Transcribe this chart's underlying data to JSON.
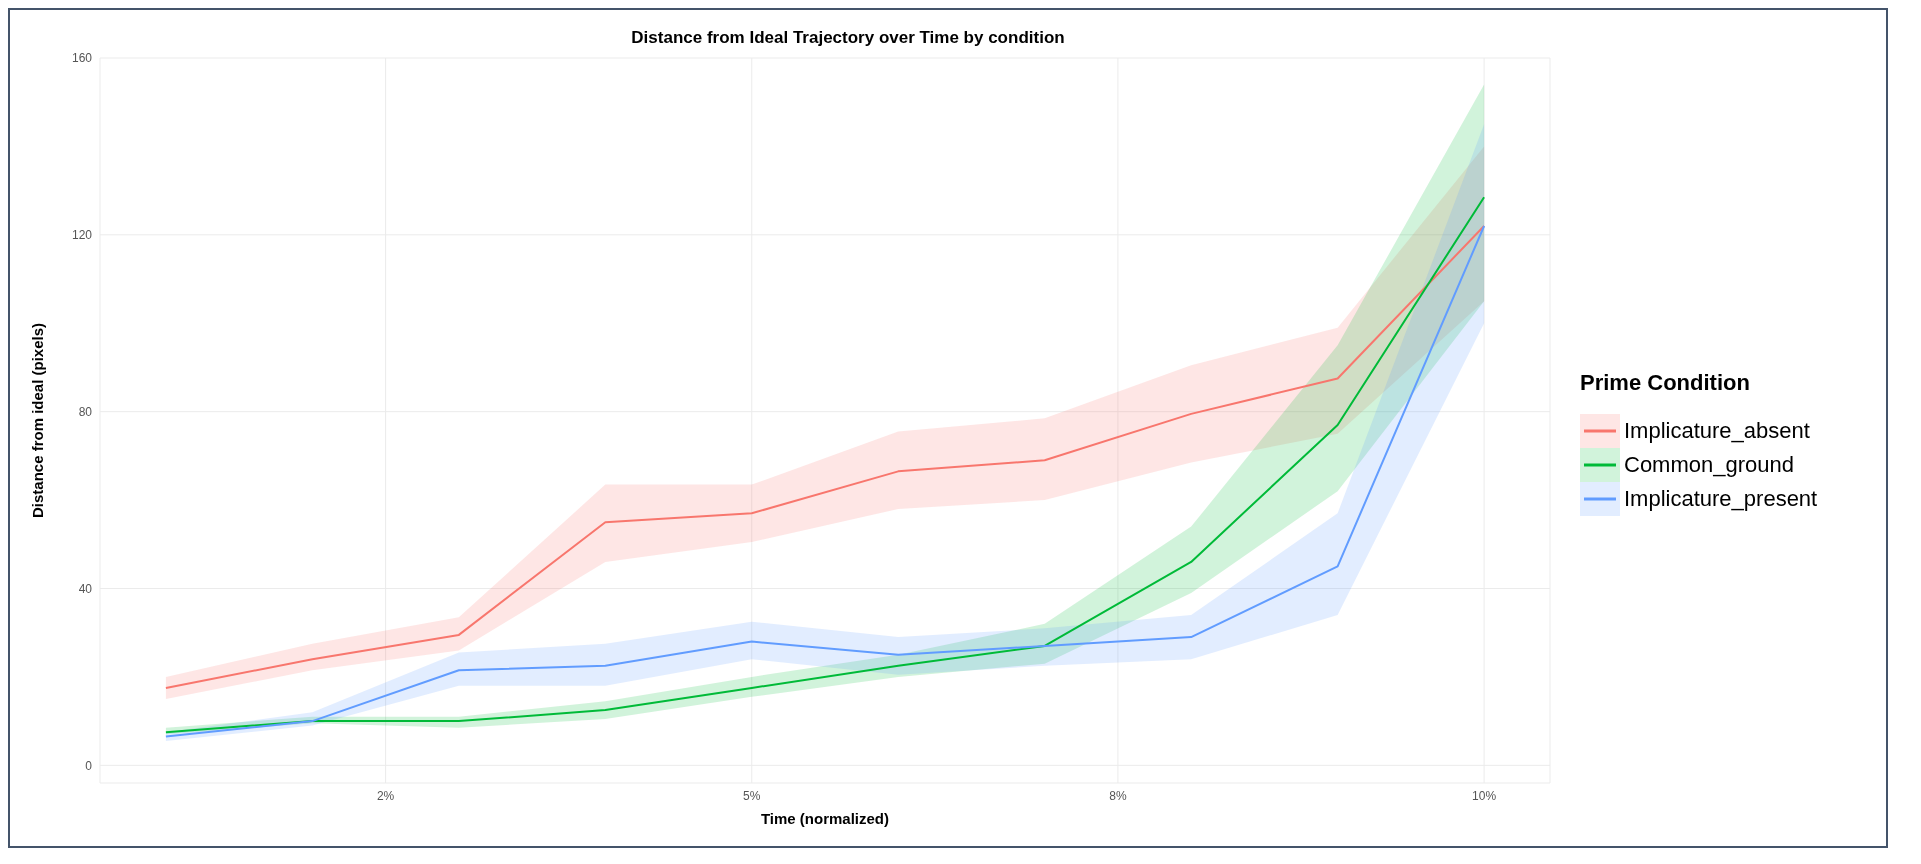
{
  "chart_data": {
    "type": "line",
    "title": "Distance from Ideal Trajectory over Time by condition",
    "xlabel": "Time (normalized)",
    "ylabel": "Distance from ideal (pixels)",
    "legend_title": "Prime Condition",
    "legend": "right",
    "grid": true,
    "x": [
      1,
      2,
      3,
      4,
      5,
      6,
      7,
      8,
      9,
      10
    ],
    "xlim": [
      0.55,
      10.45
    ],
    "xticks": [
      {
        "value": 2.5,
        "label": "2%"
      },
      {
        "value": 5,
        "label": "5%"
      },
      {
        "value": 7.5,
        "label": "8%"
      },
      {
        "value": 10,
        "label": "10%"
      }
    ],
    "ylim": [
      -4,
      160
    ],
    "yticks": [
      0,
      40,
      80,
      120,
      160
    ],
    "series": [
      {
        "name": "Implicature_absent",
        "color": "#f8766d",
        "values": [
          17.5,
          24,
          29.5,
          55,
          57,
          66.5,
          69,
          79.5,
          87.5,
          122
        ],
        "lower": [
          15,
          21.5,
          26,
          46,
          50.5,
          58,
          60,
          68.5,
          75,
          105
        ],
        "upper": [
          20,
          27.5,
          33.5,
          63.5,
          63.5,
          75.5,
          78.5,
          90.5,
          99,
          140
        ]
      },
      {
        "name": "Common_ground",
        "color": "#00ba38",
        "values": [
          7.5,
          10,
          10,
          12.5,
          17.5,
          22.5,
          27,
          46,
          77,
          128.5
        ],
        "lower": [
          7,
          9.5,
          8.5,
          10.5,
          15.5,
          20,
          23,
          39,
          62,
          105
        ],
        "upper": [
          8.5,
          11,
          11,
          14.5,
          20,
          25,
          32,
          54,
          95,
          154
        ]
      },
      {
        "name": "Implicature_present",
        "color": "#619cff",
        "values": [
          6.5,
          10,
          21.5,
          22.5,
          28,
          25,
          27,
          29,
          45,
          122
        ],
        "lower": [
          5.5,
          9,
          18,
          18,
          24,
          20.5,
          22.5,
          24,
          34,
          100
        ],
        "upper": [
          7.5,
          12,
          25.5,
          27.5,
          32.5,
          29,
          31,
          34,
          57,
          145
        ]
      }
    ]
  }
}
